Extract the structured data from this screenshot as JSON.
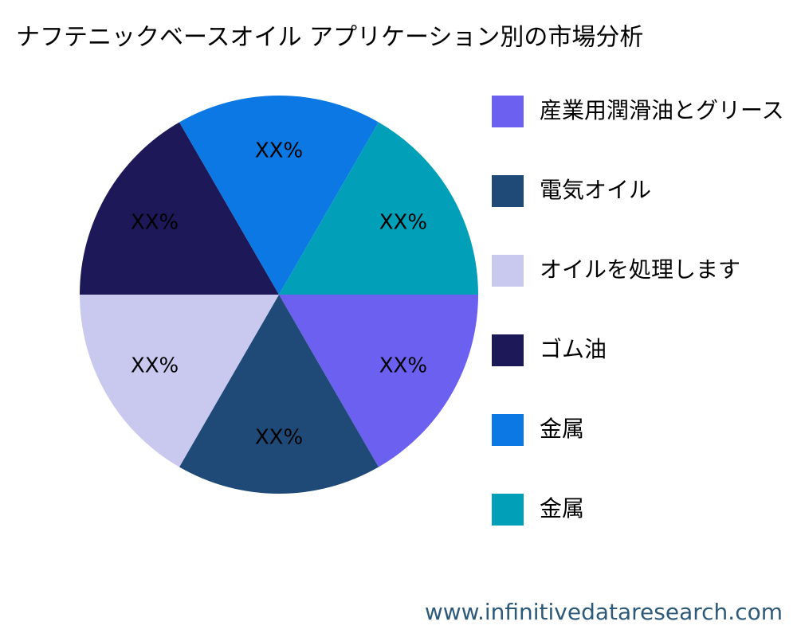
{
  "chart_data": {
    "type": "pie",
    "title": "ナフテニックベースオイル アプリケーション別の市場分析",
    "categories": [
      "産業用潤滑油とグリース",
      "電気オイル",
      "オイルを処理します",
      "ゴム油",
      "金属",
      "金属"
    ],
    "values": [
      16.67,
      16.67,
      16.67,
      16.67,
      16.67,
      16.67
    ],
    "value_labels": [
      "XX%",
      "XX%",
      "XX%",
      "XX%",
      "XX%",
      "XX%"
    ],
    "colors": [
      "#6c60f1",
      "#1f4a78",
      "#c9c9f0",
      "#1d1858",
      "#0b78e3",
      "#02a0b8"
    ],
    "legend": "right",
    "watermark": "www.infinitivedataresearch.com"
  }
}
